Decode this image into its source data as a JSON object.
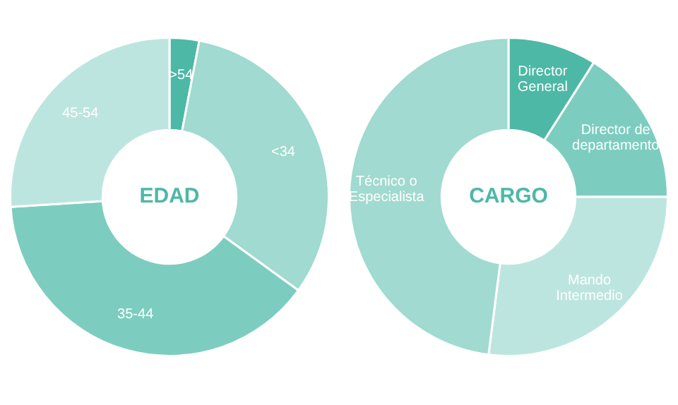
{
  "chart_data": [
    {
      "type": "donut",
      "title": "EDAD",
      "categories": [
        ">54",
        "<34",
        "35-44",
        "45-54"
      ],
      "values": [
        3,
        32,
        39,
        26
      ],
      "colors": [
        "#4db8a6",
        "#a0dad0",
        "#7ccdbf",
        "#bde5df"
      ]
    },
    {
      "type": "donut",
      "title": "CARGO",
      "categories": [
        "Director General",
        "Director de departamento",
        "Mando Intermedio",
        "Técnico o Especialista"
      ],
      "values": [
        9,
        16,
        27,
        48
      ],
      "colors": [
        "#4db8a6",
        "#7ccdbf",
        "#bde5df",
        "#a0dad0"
      ]
    }
  ]
}
